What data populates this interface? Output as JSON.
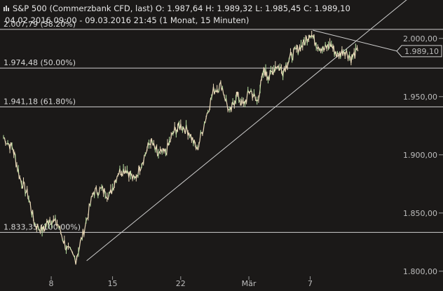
{
  "header": {
    "icon": "candle-bars-icon",
    "line1": "S&P 500 (Commerzbank CFD, last)  O: 1.987,64  H: 1.989,32  L: 1.985,45  C: 1.989,10",
    "line2": "04.02.2016 09:00 - 09.03.2016 21:45 (1 Monat, 15 Minuten)"
  },
  "colors": {
    "background": "#1b1918",
    "candle": "#e9d9b8",
    "grid_line": "#cfcfcf",
    "trend_line": "#cfcfcf",
    "label_box": "#1b1918"
  },
  "chart_data": {
    "type": "line",
    "title": "S&P 500 (Commerzbank CFD, last)",
    "x_ticks": [
      "8",
      "15",
      "22",
      "Mär",
      "7"
    ],
    "y_ticks": [
      "2.000,00",
      "1.950,00",
      "1.900,00",
      "1.850,00",
      "1.800,00"
    ],
    "y_tick_values": [
      2000,
      1950,
      1900,
      1850,
      1800
    ],
    "ylim": [
      1783,
      2033
    ],
    "last_price_label": "1.989,10",
    "last_price": 1989.1,
    "fib_levels": [
      {
        "label": "2.007,79 (38.20%)",
        "value": 2007.79
      },
      {
        "label": "1.974,48 (50.00%)",
        "value": 1974.48
      },
      {
        "label": "1.941,18 (61.80%)",
        "value": 1941.18
      },
      {
        "label": "1.833,35 (100.00%)",
        "value": 1833.35
      }
    ],
    "x_ticks_day_index": [
      3.5,
      8,
      13,
      18,
      22.5
    ],
    "series": [
      {
        "day_index": [
          0,
          0.7,
          1.2,
          1.8,
          2.3,
          2.9,
          3.4,
          4.0,
          4.6,
          5.3,
          5.9,
          6.6,
          7.2,
          7.8,
          8.4,
          9.0,
          9.6,
          10.2,
          10.8,
          11.3,
          11.9,
          12.5,
          13.0,
          13.6,
          14.2,
          14.8,
          15.4,
          16.0,
          16.6,
          17.1,
          17.6,
          18.1,
          18.6,
          19.1,
          19.5,
          20.0,
          20.5,
          21.0,
          21.5,
          22.0,
          22.5,
          23.0,
          23.5,
          24.0,
          24.5,
          25.0,
          25.5,
          26.0
        ],
        "values": [
          1915,
          1905,
          1880,
          1865,
          1840,
          1835,
          1845,
          1840,
          1820,
          1810,
          1835,
          1868,
          1870,
          1865,
          1885,
          1888,
          1878,
          1895,
          1912,
          1900,
          1902,
          1920,
          1925,
          1920,
          1904,
          1930,
          1955,
          1960,
          1935,
          1952,
          1942,
          1956,
          1945,
          1972,
          1967,
          1977,
          1972,
          1983,
          1990,
          1995,
          2005,
          1995,
          1990,
          1995,
          1985,
          1990,
          1983,
          1989
        ]
      }
    ],
    "trend_lines": [
      {
        "from": [
          6.1,
          1809
        ],
        "to": [
          30.5,
          2042
        ]
      },
      {
        "from": [
          22.7,
          2007
        ],
        "to": [
          29.6,
          1987
        ]
      }
    ]
  }
}
